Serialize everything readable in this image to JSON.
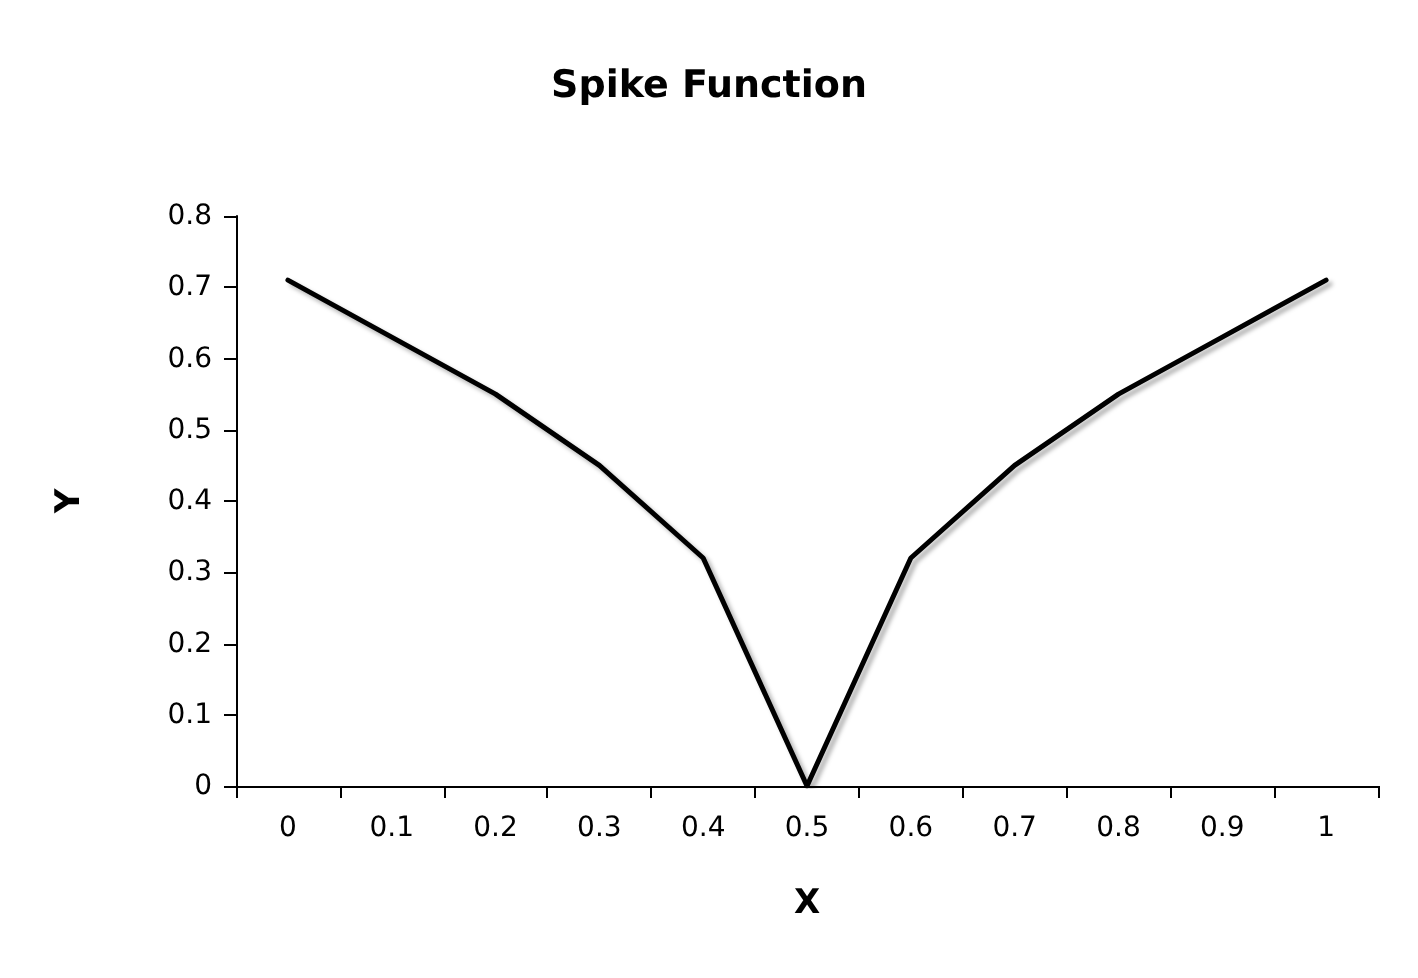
{
  "chart_data": {
    "type": "line",
    "title": "Spike Function",
    "xlabel": "X",
    "ylabel": "Y",
    "categories": [
      "0",
      "0.1",
      "0.2",
      "0.3",
      "0.4",
      "0.5",
      "0.6",
      "0.7",
      "0.8",
      "0.9",
      "1"
    ],
    "series": [
      {
        "color": "#000000",
        "values": [
          0.71,
          0.63,
          0.55,
          0.45,
          0.32,
          0,
          0.32,
          0.45,
          0.55,
          0.63,
          0.71
        ]
      }
    ],
    "ylim": [
      0,
      0.8
    ],
    "yticks": [
      0,
      0.1,
      0.2,
      0.3,
      0.4,
      0.5,
      0.6,
      0.7,
      0.8
    ],
    "grid": false,
    "marker": "none",
    "line_style": "solid"
  }
}
